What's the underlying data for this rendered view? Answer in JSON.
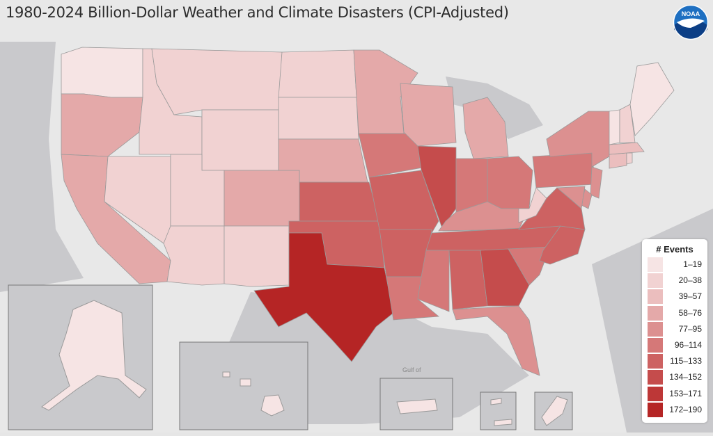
{
  "title": "1980-2024 Billion-Dollar Weather and Climate Disasters (CPI-Adjusted)",
  "logo_text": "NOAA",
  "legend": {
    "title": "# Events",
    "bins": [
      {
        "label": "1–19",
        "color": "#f6e4e4"
      },
      {
        "label": "20–38",
        "color": "#f1d2d2"
      },
      {
        "label": "39–57",
        "color": "#ebbebe"
      },
      {
        "label": "58–76",
        "color": "#e4a9a9"
      },
      {
        "label": "77–95",
        "color": "#dc9090"
      },
      {
        "label": "96–114",
        "color": "#d57878"
      },
      {
        "label": "115–133",
        "color": "#cd6262"
      },
      {
        "label": "134–152",
        "color": "#c54c4c"
      },
      {
        "label": "153–171",
        "color": "#bd3737"
      },
      {
        "label": "172–190",
        "color": "#b52525"
      }
    ]
  },
  "ocean_label": "Gulf of",
  "states": {
    "WA": 0,
    "OR": 3,
    "CA": 3,
    "NV": 1,
    "ID": 1,
    "MT": 1,
    "WY": 1,
    "UT": 1,
    "AZ": 1,
    "CO": 3,
    "NM": 1,
    "ND": 1,
    "SD": 1,
    "NE": 3,
    "KS": 6,
    "OK": 6,
    "TX": 9,
    "MN": 3,
    "IA": 5,
    "MO": 6,
    "AR": 6,
    "LA": 5,
    "WI": 3,
    "IL": 7,
    "MI": 3,
    "IN": 5,
    "OH": 5,
    "KY": 4,
    "TN": 6,
    "MS": 5,
    "AL": 6,
    "GA": 7,
    "FL": 4,
    "SC": 5,
    "NC": 6,
    "VA": 6,
    "WV": 1,
    "PA": 5,
    "NY": 4,
    "NJ": 4,
    "DE": 4,
    "MD": 4,
    "CT": 2,
    "RI": 1,
    "MA": 2,
    "VT": 0,
    "NH": 1,
    "ME": 0,
    "AK": 0,
    "HI": 0,
    "PR": 0,
    "VI": 0,
    "GU": 0
  }
}
